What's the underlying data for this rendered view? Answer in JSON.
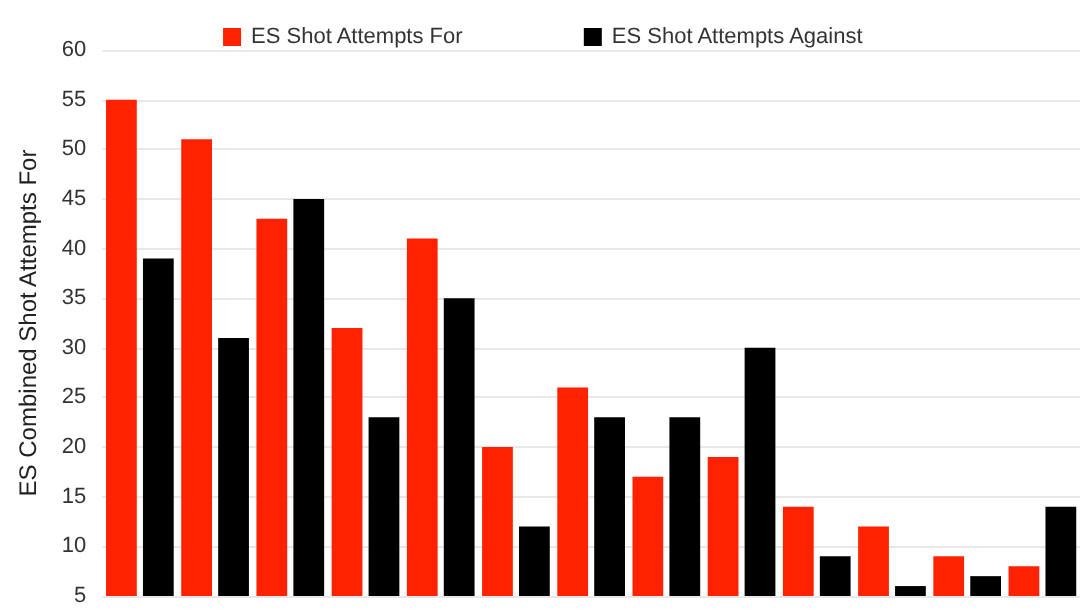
{
  "chart_data": {
    "type": "bar",
    "ylabel": "ES Combined Shot Attempts For",
    "categories": [
      null,
      null,
      null,
      null,
      null,
      null,
      null,
      null,
      null,
      null,
      null,
      null,
      null
    ],
    "series": [
      {
        "name": "ES Shot Attempts For",
        "color": "#ff2200",
        "values": [
          55,
          51,
          43,
          32,
          41,
          20,
          26,
          17,
          19,
          14,
          12,
          9,
          8
        ]
      },
      {
        "name": "ES Shot Attempts Against",
        "color": "#000000",
        "values": [
          39,
          31,
          45,
          23,
          35,
          12,
          23,
          23,
          30,
          9,
          6,
          7,
          14
        ]
      }
    ],
    "ylim": [
      5,
      60
    ],
    "yticks": [
      5,
      10,
      15,
      20,
      25,
      30,
      35,
      40,
      45,
      50,
      55,
      60
    ],
    "grid": "y",
    "legend": "top"
  }
}
